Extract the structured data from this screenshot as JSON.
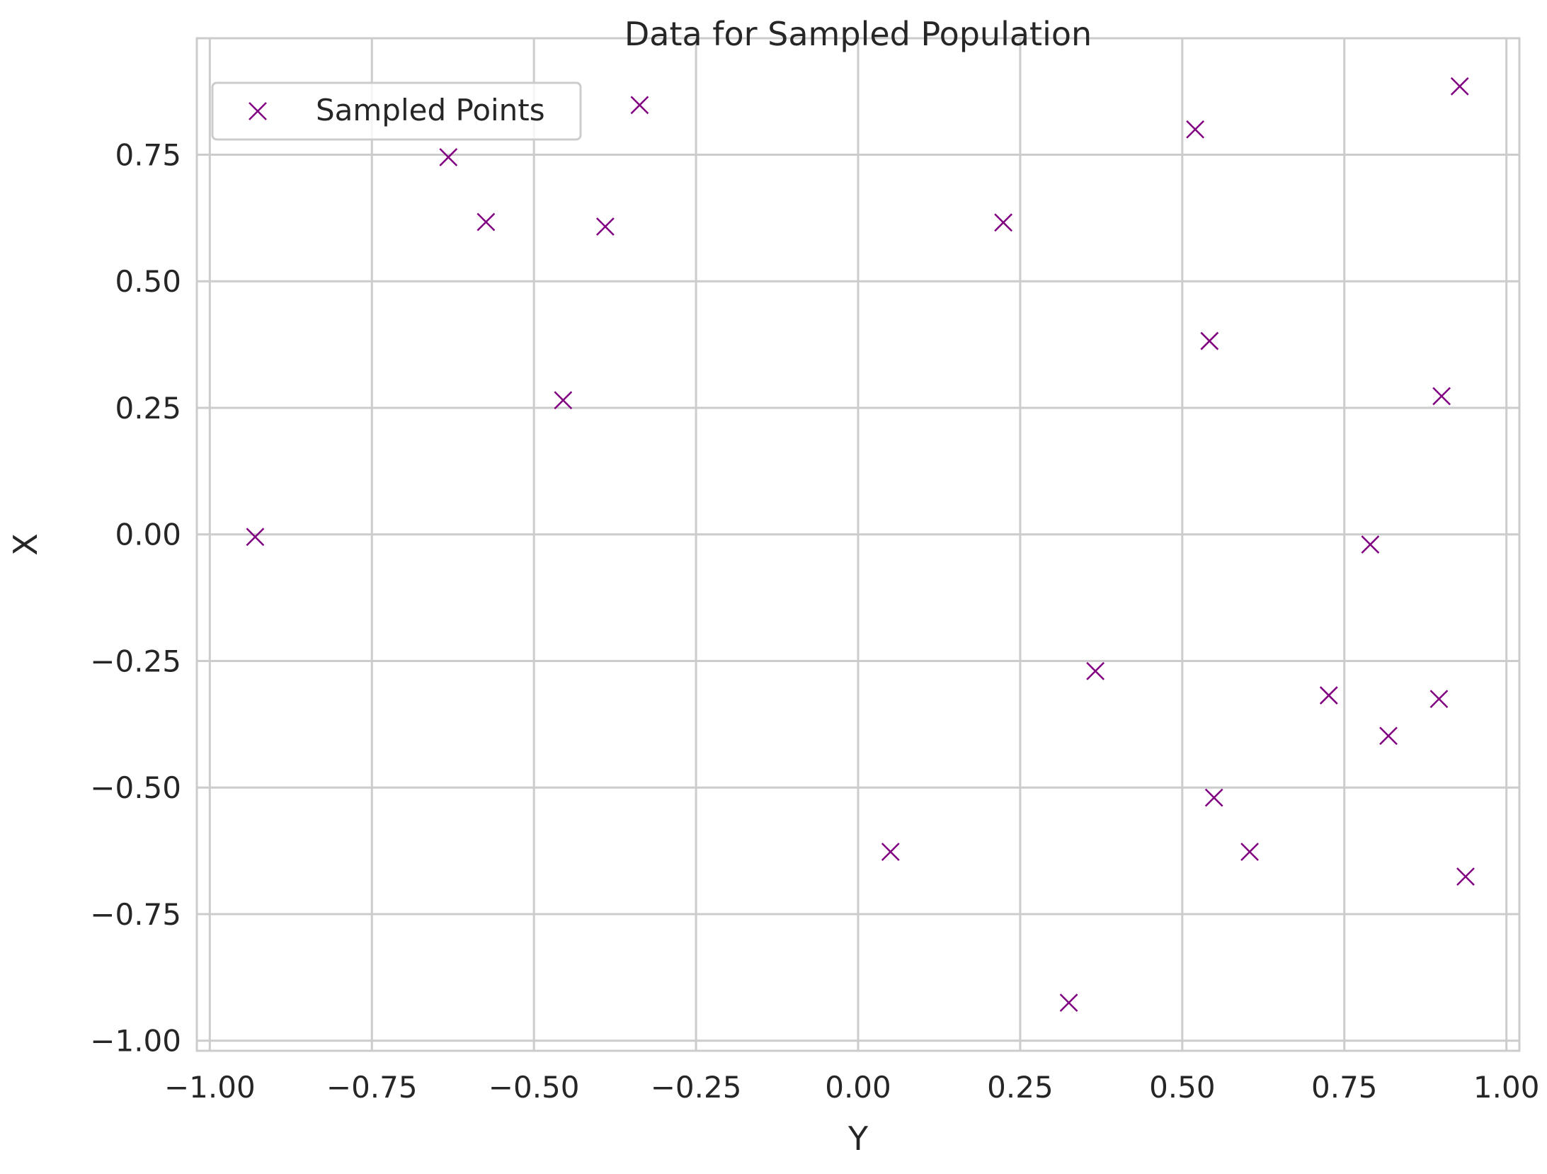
{
  "chart_data": {
    "type": "scatter",
    "title": "Data for Sampled Population",
    "xlabel": "Y",
    "ylabel": "X",
    "xlim": [
      -1.02,
      1.02
    ],
    "ylim": [
      -1.02,
      0.98
    ],
    "xticks": [
      -1.0,
      -0.75,
      -0.5,
      -0.25,
      0.0,
      0.25,
      0.5,
      0.75,
      1.0
    ],
    "xtick_labels": [
      "−1.00",
      "−0.75",
      "−0.50",
      "−0.25",
      "0.00",
      "0.25",
      "0.50",
      "0.75",
      "1.00"
    ],
    "yticks": [
      -1.0,
      -0.75,
      -0.5,
      -0.25,
      0.0,
      0.25,
      0.5,
      0.75
    ],
    "ytick_labels": [
      "−1.00",
      "−0.75",
      "−0.50",
      "−0.25",
      "0.00",
      "0.25",
      "0.50",
      "0.75"
    ],
    "grid": true,
    "legend_position": "top-left",
    "series": [
      {
        "name": "Sampled Points",
        "marker": "x",
        "color": "#800080",
        "points": [
          {
            "x": -0.93,
            "y": -0.005
          },
          {
            "x": -0.632,
            "y": 0.745
          },
          {
            "x": -0.574,
            "y": 0.617
          },
          {
            "x": -0.455,
            "y": 0.265
          },
          {
            "x": -0.39,
            "y": 0.608
          },
          {
            "x": -0.337,
            "y": 0.848
          },
          {
            "x": 0.05,
            "y": -0.627
          },
          {
            "x": 0.224,
            "y": 0.616
          },
          {
            "x": 0.325,
            "y": -0.925
          },
          {
            "x": 0.366,
            "y": -0.27
          },
          {
            "x": 0.52,
            "y": 0.8
          },
          {
            "x": 0.542,
            "y": 0.382
          },
          {
            "x": 0.549,
            "y": -0.52
          },
          {
            "x": 0.604,
            "y": -0.627
          },
          {
            "x": 0.726,
            "y": -0.318
          },
          {
            "x": 0.79,
            "y": -0.02
          },
          {
            "x": 0.818,
            "y": -0.398
          },
          {
            "x": 0.896,
            "y": -0.325
          },
          {
            "x": 0.9,
            "y": 0.273
          },
          {
            "x": 0.928,
            "y": 0.885
          },
          {
            "x": 0.937,
            "y": -0.676
          }
        ]
      }
    ],
    "colors": {
      "grid": "#cccccc",
      "axes_edge": "#cccccc",
      "text": "#262626",
      "marker": "#800080"
    }
  }
}
